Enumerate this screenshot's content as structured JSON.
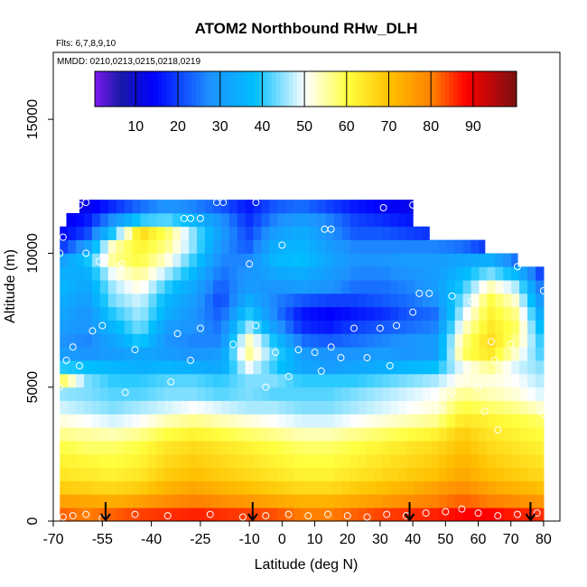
{
  "chart_data": {
    "type": "heatmap",
    "title": "ATOM2 Northbound RHw_DLH",
    "flights_label": "Flts: 6,7,8,9,10",
    "dates_label": "MMDD: 0210,0213,0215,0218,0219",
    "xlabel": "Latitude (deg N)",
    "ylabel": "Altitude (m)",
    "xlim": [
      -70,
      85
    ],
    "ylim": [
      0,
      17500
    ],
    "x_ticks": [
      -70,
      -55,
      -40,
      -25,
      -10,
      0,
      10,
      20,
      30,
      40,
      50,
      60,
      70,
      80
    ],
    "y_ticks": [
      0,
      5000,
      10000,
      15000
    ],
    "colorbar": {
      "range": [
        0,
        100
      ],
      "ticks": [
        10,
        20,
        30,
        40,
        50,
        60,
        70,
        80,
        90
      ],
      "colors": [
        "#7d18ee",
        "#1a1aa8",
        "#0000ff",
        "#1e90ff",
        "#00bfff",
        "#ffffff",
        "#ffff40",
        "#ffc000",
        "#ff8000",
        "#ff0000",
        "#7a1010"
      ],
      "color_positions": [
        0,
        6,
        14,
        27,
        38,
        50,
        60,
        70,
        80,
        88,
        100
      ]
    },
    "lat_extent": [
      -68,
      80
    ],
    "altitude_levels_m": [
      0,
      500,
      1000,
      1500,
      2000,
      2500,
      3000,
      3500,
      4000,
      4500,
      5000,
      5500,
      6000,
      6500,
      7000,
      7500,
      8000,
      8500,
      9000,
      9500,
      10000,
      10500,
      11000,
      11500
    ],
    "level_lat_range": [
      [
        -68,
        80
      ],
      [
        -68,
        80
      ],
      [
        -68,
        80
      ],
      [
        -68,
        80
      ],
      [
        -68,
        80
      ],
      [
        -68,
        80
      ],
      [
        -68,
        80
      ],
      [
        -68,
        80
      ],
      [
        -68,
        80
      ],
      [
        -68,
        80
      ],
      [
        -68,
        80
      ],
      [
        -68,
        80
      ],
      [
        -68,
        80
      ],
      [
        -68,
        80
      ],
      [
        -68,
        80
      ],
      [
        -68,
        80
      ],
      [
        -68,
        80
      ],
      [
        -68,
        80
      ],
      [
        -68,
        80
      ],
      [
        -68,
        72
      ],
      [
        -70,
        62
      ],
      [
        -68,
        45
      ],
      [
        -66,
        40
      ],
      [
        -62,
        40
      ]
    ],
    "rh_percent_by_level": [
      [
        82,
        80,
        82,
        84,
        85,
        86,
        85,
        84,
        83,
        80,
        80,
        82,
        84,
        85,
        86,
        88,
        88,
        86,
        85
      ],
      [
        75,
        74,
        73,
        75,
        78,
        80,
        78,
        76,
        74,
        72,
        72,
        74,
        76,
        78,
        80,
        82,
        80,
        78,
        76
      ],
      [
        68,
        67,
        66,
        68,
        72,
        74,
        72,
        70,
        68,
        66,
        66,
        68,
        70,
        72,
        75,
        78,
        74,
        72,
        70
      ],
      [
        64,
        63,
        62,
        64,
        68,
        70,
        68,
        66,
        64,
        62,
        62,
        64,
        66,
        68,
        70,
        74,
        70,
        68,
        66
      ],
      [
        62,
        61,
        60,
        62,
        66,
        68,
        66,
        64,
        62,
        60,
        60,
        62,
        64,
        66,
        68,
        72,
        68,
        66,
        64
      ],
      [
        60,
        58,
        58,
        60,
        64,
        66,
        64,
        62,
        60,
        58,
        58,
        60,
        62,
        64,
        66,
        70,
        66,
        64,
        62
      ],
      [
        56,
        55,
        54,
        56,
        60,
        62,
        60,
        58,
        56,
        54,
        54,
        56,
        58,
        60,
        62,
        68,
        64,
        62,
        60
      ],
      [
        52,
        50,
        48,
        50,
        54,
        56,
        54,
        52,
        50,
        48,
        48,
        50,
        52,
        54,
        56,
        64,
        62,
        60,
        58
      ],
      [
        48,
        46,
        44,
        46,
        48,
        50,
        48,
        46,
        46,
        44,
        44,
        46,
        48,
        50,
        52,
        60,
        58,
        56,
        52
      ],
      [
        45,
        44,
        42,
        42,
        44,
        44,
        42,
        44,
        42,
        42,
        42,
        44,
        46,
        48,
        50,
        56,
        54,
        52,
        48
      ],
      [
        60,
        44,
        40,
        40,
        42,
        42,
        40,
        44,
        44,
        40,
        40,
        40,
        42,
        44,
        46,
        52,
        52,
        50,
        46
      ],
      [
        40,
        38,
        36,
        34,
        36,
        34,
        32,
        50,
        40,
        32,
        30,
        32,
        34,
        36,
        38,
        50,
        56,
        48,
        44
      ],
      [
        30,
        28,
        30,
        32,
        30,
        28,
        30,
        56,
        42,
        30,
        28,
        28,
        30,
        28,
        30,
        58,
        64,
        52,
        40
      ],
      [
        28,
        26,
        32,
        40,
        28,
        26,
        26,
        54,
        38,
        24,
        22,
        24,
        26,
        28,
        30,
        56,
        66,
        56,
        38
      ],
      [
        30,
        28,
        36,
        44,
        30,
        28,
        24,
        46,
        30,
        18,
        16,
        20,
        22,
        24,
        26,
        52,
        64,
        58,
        34
      ],
      [
        32,
        28,
        40,
        46,
        34,
        28,
        22,
        40,
        26,
        16,
        14,
        16,
        18,
        22,
        24,
        48,
        62,
        56,
        30
      ],
      [
        34,
        30,
        44,
        48,
        36,
        30,
        20,
        34,
        26,
        22,
        20,
        20,
        22,
        24,
        28,
        44,
        60,
        52,
        26
      ],
      [
        36,
        32,
        46,
        52,
        40,
        32,
        22,
        30,
        28,
        30,
        28,
        24,
        24,
        26,
        30,
        40,
        54,
        46,
        22
      ],
      [
        34,
        34,
        50,
        56,
        46,
        36,
        24,
        28,
        32,
        34,
        30,
        26,
        26,
        28,
        30,
        36,
        44,
        36,
        18
      ],
      [
        30,
        38,
        56,
        60,
        52,
        40,
        26,
        26,
        36,
        38,
        32,
        28,
        28,
        30,
        30,
        32,
        34,
        24,
        14
      ],
      [
        18,
        30,
        54,
        62,
        56,
        44,
        28,
        22,
        34,
        36,
        30,
        26,
        26,
        26,
        26,
        24,
        18,
        12,
        10
      ],
      [
        14,
        20,
        40,
        66,
        58,
        44,
        30,
        20,
        30,
        34,
        28,
        22,
        22,
        20,
        18,
        14,
        10,
        10,
        10
      ],
      [
        12,
        16,
        28,
        40,
        42,
        36,
        28,
        18,
        26,
        30,
        26,
        20,
        18,
        16,
        14,
        12,
        10,
        10,
        10
      ],
      [
        10,
        12,
        18,
        24,
        28,
        26,
        22,
        16,
        22,
        24,
        20,
        16,
        14,
        12,
        10,
        10,
        10,
        10,
        10
      ]
    ],
    "data_points": [
      {
        "lat": -67,
        "alt": 150
      },
      {
        "lat": -64,
        "alt": 200
      },
      {
        "lat": -60,
        "alt": 250
      },
      {
        "lat": -55,
        "alt": 100
      },
      {
        "lat": -45,
        "alt": 250
      },
      {
        "lat": -35,
        "alt": 200
      },
      {
        "lat": -22,
        "alt": 250
      },
      {
        "lat": -12,
        "alt": 150
      },
      {
        "lat": -5,
        "alt": 200
      },
      {
        "lat": 2,
        "alt": 250
      },
      {
        "lat": 8,
        "alt": 200
      },
      {
        "lat": 14,
        "alt": 250
      },
      {
        "lat": 20,
        "alt": 200
      },
      {
        "lat": 26,
        "alt": 150
      },
      {
        "lat": 32,
        "alt": 250
      },
      {
        "lat": 38,
        "alt": 200
      },
      {
        "lat": 44,
        "alt": 300
      },
      {
        "lat": 50,
        "alt": 350
      },
      {
        "lat": 55,
        "alt": 450
      },
      {
        "lat": 60,
        "alt": 300
      },
      {
        "lat": 66,
        "alt": 200
      },
      {
        "lat": 72,
        "alt": 250
      },
      {
        "lat": 78,
        "alt": 300
      },
      {
        "lat": -68,
        "alt": 5000
      },
      {
        "lat": -66,
        "alt": 6000
      },
      {
        "lat": -64,
        "alt": 6500
      },
      {
        "lat": -62,
        "alt": 5800
      },
      {
        "lat": -58,
        "alt": 7100
      },
      {
        "lat": -55,
        "alt": 7300
      },
      {
        "lat": -48,
        "alt": 4800
      },
      {
        "lat": -45,
        "alt": 6400
      },
      {
        "lat": -34,
        "alt": 5200
      },
      {
        "lat": -32,
        "alt": 7000
      },
      {
        "lat": -28,
        "alt": 6000
      },
      {
        "lat": -25,
        "alt": 7200
      },
      {
        "lat": -15,
        "alt": 6600
      },
      {
        "lat": -10,
        "alt": 9600
      },
      {
        "lat": -8,
        "alt": 7300
      },
      {
        "lat": -5,
        "alt": 5000
      },
      {
        "lat": -2,
        "alt": 6300
      },
      {
        "lat": 2,
        "alt": 5400
      },
      {
        "lat": 5,
        "alt": 6400
      },
      {
        "lat": 10,
        "alt": 6300
      },
      {
        "lat": 12,
        "alt": 5600
      },
      {
        "lat": 15,
        "alt": 6500
      },
      {
        "lat": 18,
        "alt": 6100
      },
      {
        "lat": 22,
        "alt": 7200
      },
      {
        "lat": 26,
        "alt": 6100
      },
      {
        "lat": 30,
        "alt": 7200
      },
      {
        "lat": 33,
        "alt": 5800
      },
      {
        "lat": 35,
        "alt": 7300
      },
      {
        "lat": 40,
        "alt": 7800
      },
      {
        "lat": 42,
        "alt": 8500
      },
      {
        "lat": 45,
        "alt": 8500
      },
      {
        "lat": 45,
        "alt": 4600
      },
      {
        "lat": 47,
        "alt": 4700
      },
      {
        "lat": 48,
        "alt": 4200
      },
      {
        "lat": 52,
        "alt": 4800
      },
      {
        "lat": 52,
        "alt": 8400
      },
      {
        "lat": 56,
        "alt": 5300
      },
      {
        "lat": 58,
        "alt": 8200
      },
      {
        "lat": 60,
        "alt": 5000
      },
      {
        "lat": 62,
        "alt": 4100
      },
      {
        "lat": 64,
        "alt": 6700
      },
      {
        "lat": 65,
        "alt": 6000
      },
      {
        "lat": 66,
        "alt": 3400
      },
      {
        "lat": 68,
        "alt": 5800
      },
      {
        "lat": 70,
        "alt": 6600
      },
      {
        "lat": 72,
        "alt": 9500
      },
      {
        "lat": 74,
        "alt": 5100
      },
      {
        "lat": 80,
        "alt": 4000
      },
      {
        "lat": 80,
        "alt": 8600
      },
      {
        "lat": -68,
        "alt": 10000
      },
      {
        "lat": -67,
        "alt": 10600
      },
      {
        "lat": -60,
        "alt": 10000
      },
      {
        "lat": -56,
        "alt": 9700
      },
      {
        "lat": -54,
        "alt": 9800
      },
      {
        "lat": -50,
        "alt": 9500
      },
      {
        "lat": -49,
        "alt": 9600
      },
      {
        "lat": -47,
        "alt": 10700
      },
      {
        "lat": -35,
        "alt": 9900
      },
      {
        "lat": -30,
        "alt": 11300
      },
      {
        "lat": -28,
        "alt": 11300
      },
      {
        "lat": -25,
        "alt": 11300
      },
      {
        "lat": -20,
        "alt": 11900
      },
      {
        "lat": -18,
        "alt": 11900
      },
      {
        "lat": -8,
        "alt": 11900
      },
      {
        "lat": 0,
        "alt": 10300
      },
      {
        "lat": 13,
        "alt": 10900
      },
      {
        "lat": 15,
        "alt": 10900
      },
      {
        "lat": 31,
        "alt": 11700
      },
      {
        "lat": 40,
        "alt": 11800
      },
      {
        "lat": -62,
        "alt": 11800
      },
      {
        "lat": -60,
        "alt": 11900
      }
    ],
    "arrow_lats": [
      -54,
      -9,
      39,
      76
    ]
  }
}
